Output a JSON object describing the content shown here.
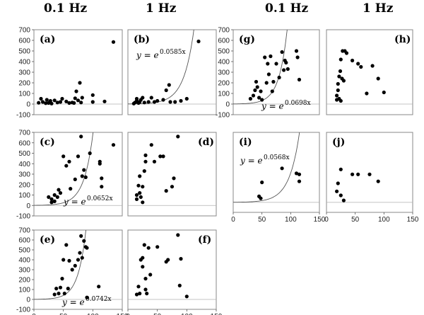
{
  "columns": {
    "col1": "0.1 Hz",
    "col2": "1 Hz",
    "col3": "0.1 Hz",
    "col4": "1 Hz"
  },
  "colors": {
    "points": "#000000",
    "curve": "#555555",
    "frame": "#888888"
  },
  "chart_data": [
    {
      "type": "scatter",
      "label": "(a)",
      "xlim": [
        0,
        150
      ],
      "ylim": [
        -100,
        700
      ],
      "yticks": [
        -100,
        0,
        100,
        200,
        300,
        400,
        500,
        600,
        700
      ],
      "points": [
        [
          8,
          12
        ],
        [
          12,
          50
        ],
        [
          15,
          20
        ],
        [
          20,
          8
        ],
        [
          22,
          40
        ],
        [
          25,
          10
        ],
        [
          28,
          30
        ],
        [
          30,
          5
        ],
        [
          35,
          35
        ],
        [
          40,
          15
        ],
        [
          45,
          20
        ],
        [
          48,
          50
        ],
        [
          55,
          25
        ],
        [
          60,
          10
        ],
        [
          65,
          15
        ],
        [
          68,
          10
        ],
        [
          70,
          55
        ],
        [
          72,
          120
        ],
        [
          75,
          35
        ],
        [
          78,
          200
        ],
        [
          80,
          15
        ],
        [
          82,
          60
        ],
        [
          100,
          85
        ],
        [
          100,
          20
        ],
        [
          120,
          25
        ],
        [
          135,
          585
        ]
      ],
      "curve": null
    },
    {
      "type": "scatter",
      "label": "(b)",
      "xlim": [
        0,
        150
      ],
      "ylim": [
        -100,
        700
      ],
      "points": [
        [
          10,
          5
        ],
        [
          12,
          15
        ],
        [
          15,
          30
        ],
        [
          15,
          50
        ],
        [
          18,
          10
        ],
        [
          20,
          20
        ],
        [
          22,
          40
        ],
        [
          25,
          60
        ],
        [
          28,
          15
        ],
        [
          35,
          20
        ],
        [
          40,
          60
        ],
        [
          45,
          20
        ],
        [
          50,
          30
        ],
        [
          60,
          40
        ],
        [
          65,
          130
        ],
        [
          70,
          180
        ],
        [
          72,
          20
        ],
        [
          80,
          20
        ],
        [
          90,
          30
        ],
        [
          100,
          50
        ],
        [
          120,
          590
        ]
      ],
      "curve": {
        "a": 0.0585,
        "equation": "y = e",
        "exponent": "0.0585x"
      }
    },
    {
      "type": "scatter",
      "label": "(c)",
      "xlim": [
        0,
        150
      ],
      "ylim": [
        -100,
        700
      ],
      "yticks": [
        -100,
        0,
        100,
        200,
        300,
        400,
        500,
        600,
        700
      ],
      "points": [
        [
          25,
          80
        ],
        [
          30,
          30
        ],
        [
          30,
          60
        ],
        [
          35,
          40
        ],
        [
          35,
          100
        ],
        [
          40,
          80
        ],
        [
          42,
          150
        ],
        [
          45,
          120
        ],
        [
          50,
          470
        ],
        [
          55,
          380
        ],
        [
          60,
          420
        ],
        [
          62,
          160
        ],
        [
          70,
          250
        ],
        [
          75,
          470
        ],
        [
          80,
          660
        ],
        [
          82,
          280
        ],
        [
          85,
          340
        ],
        [
          88,
          270
        ],
        [
          95,
          500
        ],
        [
          112,
          420
        ],
        [
          115,
          260
        ],
        [
          115,
          180
        ],
        [
          112,
          400
        ],
        [
          135,
          580
        ]
      ],
      "curve": {
        "a": 0.0652,
        "equation": "y = e",
        "exponent": "0.0652x"
      }
    },
    {
      "type": "scatter",
      "label": "(d)",
      "xlim": [
        0,
        150
      ],
      "ylim": [
        -100,
        700
      ],
      "points": [
        [
          15,
          100
        ],
        [
          15,
          60
        ],
        [
          18,
          190
        ],
        [
          20,
          280
        ],
        [
          20,
          120
        ],
        [
          22,
          80
        ],
        [
          25,
          30
        ],
        [
          25,
          180
        ],
        [
          28,
          330
        ],
        [
          30,
          480
        ],
        [
          30,
          420
        ],
        [
          40,
          580
        ],
        [
          45,
          420
        ],
        [
          55,
          470
        ],
        [
          60,
          470
        ],
        [
          65,
          140
        ],
        [
          75,
          180
        ],
        [
          78,
          260
        ],
        [
          85,
          660
        ]
      ],
      "curve": null
    },
    {
      "type": "scatter",
      "label": "(e)",
      "xlim": [
        0,
        150
      ],
      "ylim": [
        -100,
        700
      ],
      "yticks": [
        -100,
        0,
        100,
        200,
        300,
        400,
        500,
        600,
        700
      ],
      "points": [
        [
          35,
          50
        ],
        [
          38,
          110
        ],
        [
          42,
          60
        ],
        [
          45,
          120
        ],
        [
          48,
          210
        ],
        [
          50,
          400
        ],
        [
          52,
          60
        ],
        [
          55,
          550
        ],
        [
          58,
          110
        ],
        [
          60,
          390
        ],
        [
          65,
          300
        ],
        [
          70,
          340
        ],
        [
          75,
          400
        ],
        [
          78,
          470
        ],
        [
          80,
          640
        ],
        [
          82,
          420
        ],
        [
          85,
          590
        ],
        [
          88,
          530
        ],
        [
          90,
          520
        ],
        [
          90,
          20
        ],
        [
          110,
          130
        ]
      ],
      "curve": {
        "a": 0.0742,
        "equation": "y = e",
        "exponent": "0.0742x"
      }
    },
    {
      "type": "scatter",
      "label": "(f)",
      "xlim": [
        0,
        150
      ],
      "ylim": [
        -100,
        700
      ],
      "points": [
        [
          15,
          50
        ],
        [
          18,
          130
        ],
        [
          20,
          60
        ],
        [
          22,
          400
        ],
        [
          25,
          330
        ],
        [
          25,
          420
        ],
        [
          28,
          550
        ],
        [
          30,
          210
        ],
        [
          30,
          100
        ],
        [
          32,
          60
        ],
        [
          35,
          520
        ],
        [
          38,
          250
        ],
        [
          50,
          530
        ],
        [
          65,
          380
        ],
        [
          68,
          400
        ],
        [
          85,
          650
        ],
        [
          88,
          140
        ],
        [
          90,
          410
        ],
        [
          100,
          30
        ]
      ],
      "curve": null
    },
    {
      "type": "scatter",
      "label": "(g)",
      "xlim": [
        0,
        150
      ],
      "ylim": [
        -100,
        700
      ],
      "yticks": [
        -100,
        0,
        100,
        200,
        300,
        400,
        500,
        600,
        700
      ],
      "points": [
        [
          30,
          50
        ],
        [
          35,
          80
        ],
        [
          38,
          130
        ],
        [
          40,
          210
        ],
        [
          42,
          160
        ],
        [
          45,
          60
        ],
        [
          48,
          120
        ],
        [
          50,
          40
        ],
        [
          55,
          440
        ],
        [
          58,
          200
        ],
        [
          60,
          380
        ],
        [
          62,
          280
        ],
        [
          65,
          450
        ],
        [
          68,
          120
        ],
        [
          70,
          210
        ],
        [
          75,
          380
        ],
        [
          80,
          250
        ],
        [
          85,
          490
        ],
        [
          88,
          320
        ],
        [
          90,
          410
        ],
        [
          92,
          390
        ],
        [
          95,
          330
        ],
        [
          110,
          500
        ],
        [
          112,
          440
        ],
        [
          115,
          230
        ]
      ],
      "curve": {
        "a": 0.0698,
        "equation": "y = e",
        "exponent": "0.0698x"
      }
    },
    {
      "type": "scatter",
      "label": "(h)",
      "xlim": [
        0,
        150
      ],
      "ylim": [
        -100,
        700
      ],
      "points": [
        [
          18,
          80
        ],
        [
          18,
          40
        ],
        [
          20,
          130
        ],
        [
          20,
          190
        ],
        [
          22,
          260
        ],
        [
          22,
          50
        ],
        [
          24,
          310
        ],
        [
          25,
          30
        ],
        [
          25,
          420
        ],
        [
          27,
          240
        ],
        [
          28,
          500
        ],
        [
          30,
          220
        ],
        [
          32,
          500
        ],
        [
          35,
          480
        ],
        [
          45,
          410
        ],
        [
          55,
          380
        ],
        [
          60,
          350
        ],
        [
          70,
          100
        ],
        [
          80,
          360
        ],
        [
          90,
          240
        ],
        [
          100,
          110
        ]
      ],
      "curve": null
    },
    {
      "type": "scatter",
      "label": "(i)",
      "xlim": [
        0,
        150
      ],
      "ylim": [
        -100,
        700
      ],
      "points": [
        [
          45,
          60
        ],
        [
          48,
          40
        ],
        [
          50,
          200
        ],
        [
          85,
          340
        ],
        [
          110,
          290
        ],
        [
          115,
          280
        ],
        [
          115,
          210
        ]
      ],
      "curve": {
        "a": 0.0568,
        "equation": "y = e",
        "exponent": "0.0568x"
      }
    },
    {
      "type": "scatter",
      "label": "(j)",
      "xlim": [
        0,
        150
      ],
      "ylim": [
        -100,
        700
      ],
      "points": [
        [
          18,
          110
        ],
        [
          20,
          190
        ],
        [
          25,
          330
        ],
        [
          25,
          70
        ],
        [
          30,
          20
        ],
        [
          45,
          280
        ],
        [
          55,
          280
        ],
        [
          75,
          280
        ],
        [
          90,
          210
        ]
      ],
      "curve": null
    }
  ],
  "axes": {
    "yticks": [
      "-100",
      "0",
      "100",
      "200",
      "300",
      "400",
      "500",
      "600",
      "700"
    ],
    "xticks": [
      "0",
      "50",
      "100",
      "150"
    ]
  }
}
